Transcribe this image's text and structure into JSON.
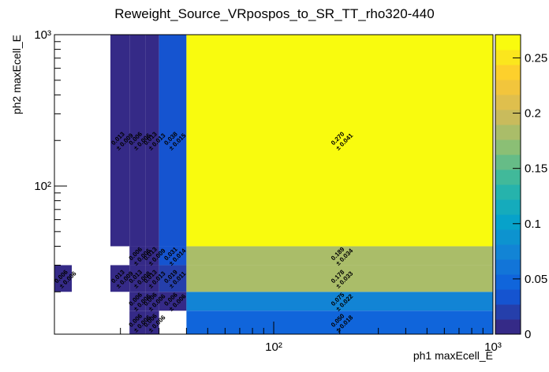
{
  "chart_data": {
    "type": "heatmap",
    "title": "Reweight_Source_VRpospos_to_SR_TT_rho320-440",
    "x_label": "ph1 maxEcell_E",
    "y_label": "ph2 maxEcell_E",
    "x_log": true,
    "y_log": true,
    "x_edges": [
      10,
      12,
      18,
      22,
      26,
      30,
      40,
      1000
    ],
    "y_edges": [
      10.5,
      15,
      20,
      30,
      40,
      1000
    ],
    "xlim": [
      10,
      1000
    ],
    "ylim": [
      10.5,
      1000
    ],
    "xticks": [
      {
        "value": 100,
        "label": "10²"
      },
      {
        "value": 1000,
        "label": "10³"
      }
    ],
    "yticks": [
      {
        "value": 100,
        "label": "10²"
      },
      {
        "value": 1000,
        "label": "10³"
      }
    ],
    "zlim": [
      0,
      0.271
    ],
    "zticks": [
      0,
      0.05,
      0.1,
      0.15,
      0.2,
      0.25
    ],
    "values": [
      [
        null,
        null,
        null,
        0.006,
        0.006,
        null,
        0.05
      ],
      [
        null,
        null,
        null,
        0.006,
        0.006,
        0.006,
        0.075
      ],
      [
        0.006,
        null,
        0.013,
        0.013,
        0.013,
        0.019,
        0.178
      ],
      [
        null,
        null,
        null,
        0.006,
        0.013,
        0.031,
        0.189
      ],
      [
        null,
        null,
        0.013,
        0.006,
        0.013,
        0.038,
        0.27
      ]
    ],
    "value_labels": [
      [
        null,
        null,
        null,
        "0.006",
        "0.006",
        null,
        "0.050"
      ],
      [
        null,
        null,
        null,
        "0.006",
        "0.006",
        "0.006",
        "0.075"
      ],
      [
        "0.006",
        null,
        "0.013",
        "0.013",
        "0.013",
        "0.019",
        "0.178"
      ],
      [
        null,
        null,
        null,
        "0.006",
        "0.013",
        "0.031",
        "0.189"
      ],
      [
        null,
        null,
        "0.013",
        "0.006",
        "0.013",
        "0.038",
        "0.270"
      ]
    ],
    "errors": [
      [
        null,
        null,
        null,
        0.006,
        0.006,
        null,
        0.018
      ],
      [
        null,
        null,
        null,
        0.006,
        0.006,
        0.006,
        0.022
      ],
      [
        0.006,
        null,
        0.009,
        0.008,
        0.013,
        0.011,
        0.033
      ],
      [
        null,
        null,
        null,
        0.006,
        0.009,
        0.014,
        0.034
      ],
      [
        null,
        null,
        0.009,
        0.006,
        0.013,
        0.015,
        0.041
      ]
    ],
    "error_labels": [
      [
        null,
        null,
        null,
        "± 0.006",
        "± 0.006",
        null,
        "± 0.018"
      ],
      [
        null,
        null,
        null,
        "± 0.006",
        "± 0.006",
        "± 0.006",
        "± 0.022"
      ],
      [
        "± 0.006",
        null,
        "± 0.009",
        "± 0.008",
        "± 0.013",
        "± 0.011",
        "± 0.033"
      ],
      [
        null,
        null,
        null,
        "± 0.006",
        "± 0.009",
        "± 0.014",
        "± 0.034"
      ],
      [
        null,
        null,
        "± 0.009",
        "± 0.006",
        "± 0.013",
        "± 0.015",
        "± 0.041"
      ]
    ]
  }
}
